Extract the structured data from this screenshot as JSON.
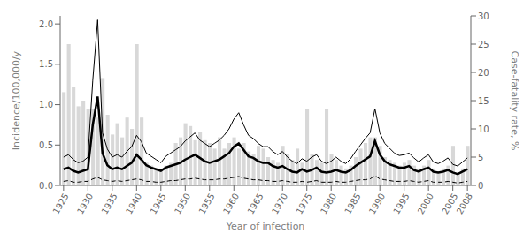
{
  "chart_data": {
    "type": "line",
    "xlabel": "Year of infection",
    "ylabel": "Incidence/100,000/y",
    "y2label": "Case-fatality rate, %",
    "x": [
      1925,
      1926,
      1927,
      1928,
      1929,
      1930,
      1931,
      1932,
      1933,
      1934,
      1935,
      1936,
      1937,
      1938,
      1939,
      1940,
      1941,
      1942,
      1943,
      1944,
      1945,
      1946,
      1947,
      1948,
      1949,
      1950,
      1951,
      1952,
      1953,
      1954,
      1955,
      1956,
      1957,
      1958,
      1959,
      1960,
      1961,
      1962,
      1963,
      1964,
      1965,
      1966,
      1967,
      1968,
      1969,
      1970,
      1971,
      1972,
      1973,
      1974,
      1975,
      1976,
      1977,
      1978,
      1979,
      1980,
      1981,
      1982,
      1983,
      1984,
      1985,
      1986,
      1987,
      1988,
      1989,
      1990,
      1991,
      1992,
      1993,
      1994,
      1995,
      1996,
      1997,
      1998,
      1999,
      2000,
      2001,
      2002,
      2003,
      2004,
      2005,
      2006,
      2007,
      2008
    ],
    "xlim": [
      1924.3,
      2008.7
    ],
    "xticks": [
      1925,
      1930,
      1935,
      1940,
      1945,
      1950,
      1955,
      1960,
      1965,
      1970,
      1975,
      1980,
      1985,
      1990,
      1995,
      2000,
      2005,
      2008
    ],
    "ylim": [
      0.0,
      2.1
    ],
    "yticks": [
      {
        "value": 0.0,
        "label": "0.0"
      },
      {
        "value": 0.5,
        "label": "0.5"
      },
      {
        "value": 1.0,
        "label": "1.0"
      },
      {
        "value": 1.5,
        "label": "1.5"
      },
      {
        "value": 2.0,
        "label": "2.0"
      }
    ],
    "y2lim": [
      0,
      30
    ],
    "y2ticks": [
      0,
      5,
      10,
      15,
      20,
      25,
      30
    ],
    "grid": false,
    "series": [
      {
        "type": "bar",
        "axis": "y2",
        "color": "#d8d8d8",
        "values": [
          16.5,
          25.0,
          17.5,
          14.0,
          15.0,
          13.5,
          13.5,
          12.0,
          19.0,
          12.5,
          9.0,
          11.0,
          8.5,
          12.0,
          10.0,
          25.0,
          12.0,
          4.0,
          3.5,
          3.0,
          2.5,
          3.5,
          4.0,
          7.5,
          8.5,
          11.0,
          10.5,
          8.0,
          9.5,
          8.0,
          7.5,
          6.5,
          8.5,
          6.5,
          7.5,
          8.5,
          6.5,
          7.5,
          6.0,
          5.5,
          7.0,
          6.5,
          5.0,
          4.5,
          4.0,
          7.0,
          5.5,
          4.5,
          6.5,
          4.0,
          13.5,
          5.5,
          4.5,
          4.0,
          13.5,
          5.5,
          4.5,
          3.5,
          3.0,
          3.5,
          5.0,
          6.5,
          7.5,
          8.5,
          8.5,
          7.0,
          5.0,
          4.5,
          4.0,
          3.5,
          4.0,
          4.5,
          3.5,
          3.0,
          3.5,
          4.5,
          3.0,
          2.5,
          3.0,
          3.5,
          7.0,
          2.0,
          3.0,
          7.0
        ]
      },
      {
        "type": "line",
        "color": "#000000",
        "line_style": "solid",
        "values": [
          0.35,
          0.38,
          0.32,
          0.28,
          0.3,
          0.35,
          1.3,
          2.05,
          0.65,
          0.45,
          0.35,
          0.38,
          0.35,
          0.42,
          0.48,
          0.62,
          0.54,
          0.4,
          0.36,
          0.32,
          0.28,
          0.36,
          0.4,
          0.44,
          0.48,
          0.55,
          0.6,
          0.65,
          0.56,
          0.52,
          0.48,
          0.52,
          0.56,
          0.62,
          0.7,
          0.82,
          0.9,
          0.75,
          0.62,
          0.58,
          0.52,
          0.48,
          0.48,
          0.42,
          0.38,
          0.42,
          0.35,
          0.3,
          0.27,
          0.33,
          0.3,
          0.35,
          0.38,
          0.3,
          0.27,
          0.3,
          0.35,
          0.3,
          0.27,
          0.33,
          0.42,
          0.5,
          0.58,
          0.65,
          0.95,
          0.65,
          0.52,
          0.46,
          0.4,
          0.37,
          0.38,
          0.4,
          0.34,
          0.29,
          0.34,
          0.38,
          0.29,
          0.27,
          0.3,
          0.34,
          0.26,
          0.24,
          0.29,
          0.34
        ]
      },
      {
        "type": "line",
        "color": "#000000",
        "line_style": "solid",
        "values": [
          0.2,
          0.22,
          0.18,
          0.16,
          0.18,
          0.2,
          0.75,
          1.1,
          0.4,
          0.25,
          0.2,
          0.22,
          0.2,
          0.24,
          0.28,
          0.38,
          0.32,
          0.25,
          0.22,
          0.2,
          0.18,
          0.22,
          0.24,
          0.26,
          0.28,
          0.32,
          0.35,
          0.38,
          0.34,
          0.3,
          0.28,
          0.3,
          0.32,
          0.36,
          0.4,
          0.48,
          0.52,
          0.44,
          0.36,
          0.34,
          0.3,
          0.28,
          0.28,
          0.24,
          0.22,
          0.24,
          0.2,
          0.17,
          0.16,
          0.2,
          0.17,
          0.19,
          0.22,
          0.17,
          0.16,
          0.17,
          0.19,
          0.17,
          0.16,
          0.19,
          0.24,
          0.28,
          0.32,
          0.36,
          0.55,
          0.38,
          0.3,
          0.26,
          0.24,
          0.22,
          0.22,
          0.24,
          0.19,
          0.17,
          0.2,
          0.22,
          0.17,
          0.16,
          0.17,
          0.19,
          0.16,
          0.14,
          0.17,
          0.2
        ]
      },
      {
        "type": "line",
        "color": "#000000",
        "line_style": "dashed",
        "values": [
          0.05,
          0.06,
          0.04,
          0.04,
          0.05,
          0.05,
          0.08,
          0.1,
          0.07,
          0.06,
          0.05,
          0.06,
          0.05,
          0.06,
          0.07,
          0.08,
          0.07,
          0.05,
          0.05,
          0.04,
          0.04,
          0.05,
          0.06,
          0.06,
          0.07,
          0.08,
          0.08,
          0.09,
          0.08,
          0.07,
          0.07,
          0.07,
          0.08,
          0.08,
          0.09,
          0.1,
          0.11,
          0.09,
          0.08,
          0.07,
          0.07,
          0.06,
          0.06,
          0.05,
          0.05,
          0.06,
          0.05,
          0.04,
          0.04,
          0.05,
          0.04,
          0.05,
          0.06,
          0.04,
          0.04,
          0.04,
          0.05,
          0.04,
          0.04,
          0.05,
          0.06,
          0.07,
          0.07,
          0.08,
          0.12,
          0.08,
          0.07,
          0.06,
          0.05,
          0.05,
          0.05,
          0.06,
          0.05,
          0.04,
          0.05,
          0.06,
          0.04,
          0.04,
          0.04,
          0.05,
          0.04,
          0.03,
          0.04,
          0.05
        ]
      }
    ]
  }
}
